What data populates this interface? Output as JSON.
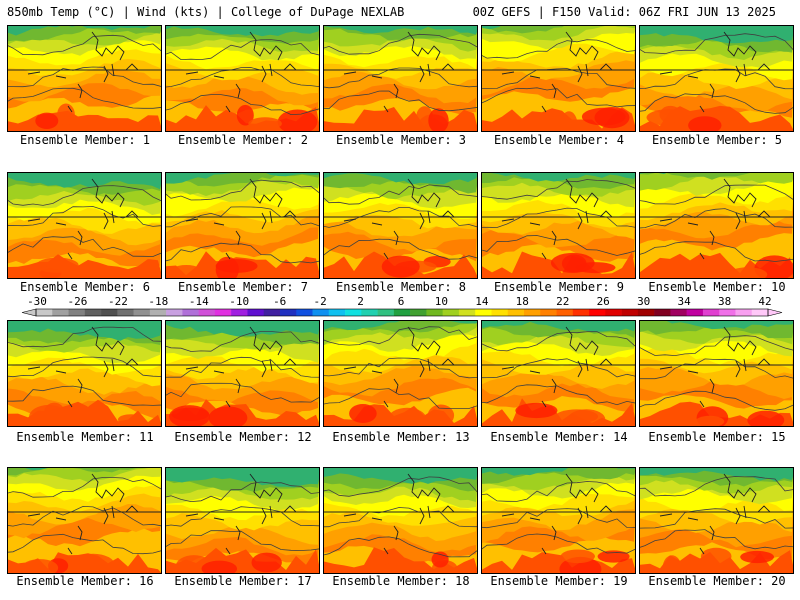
{
  "header": {
    "left_title": "850mb Temp (°C) | Wind (kts) | College of DuPage NEXLAB",
    "right_title": "00Z GEFS | F150 Valid: 06Z FRI JUN 13 2025"
  },
  "panels": [
    {
      "label": "Ensemble Member: 1"
    },
    {
      "label": "Ensemble Member: 2"
    },
    {
      "label": "Ensemble Member: 3"
    },
    {
      "label": "Ensemble Member: 4"
    },
    {
      "label": "Ensemble Member: 5"
    },
    {
      "label": "Ensemble Member: 6"
    },
    {
      "label": "Ensemble Member: 7"
    },
    {
      "label": "Ensemble Member: 8"
    },
    {
      "label": "Ensemble Member: 9"
    },
    {
      "label": "Ensemble Member: 10"
    },
    {
      "label": "Ensemble Member: 11"
    },
    {
      "label": "Ensemble Member: 12"
    },
    {
      "label": "Ensemble Member: 13"
    },
    {
      "label": "Ensemble Member: 14"
    },
    {
      "label": "Ensemble Member: 15"
    },
    {
      "label": "Ensemble Member: 16"
    },
    {
      "label": "Ensemble Member: 17"
    },
    {
      "label": "Ensemble Member: 18"
    },
    {
      "label": "Ensemble Member: 19"
    },
    {
      "label": "Ensemble Member: 20"
    }
  ],
  "colorbar": {
    "ticks": [
      "-30",
      "-26",
      "-22",
      "-18",
      "-14",
      "-10",
      "-6",
      "-2",
      "2",
      "6",
      "10",
      "14",
      "18",
      "22",
      "26",
      "30",
      "34",
      "38",
      "42"
    ],
    "colors": [
      "#c8c8c8",
      "#a0a0a0",
      "#808080",
      "#606060",
      "#505050",
      "#707070",
      "#909090",
      "#b0b0b0",
      "#c8a0e0",
      "#b070d8",
      "#d050d8",
      "#e030e0",
      "#a020e0",
      "#6010d0",
      "#4020a0",
      "#2030c0",
      "#1050e0",
      "#1090f0",
      "#10c0f0",
      "#10e0e0",
      "#20d0b0",
      "#30c080",
      "#20a040",
      "#40a030",
      "#70b820",
      "#a0d020",
      "#d0e020",
      "#ffff00",
      "#ffe000",
      "#ffc000",
      "#ffa000",
      "#ff8000",
      "#ff6000",
      "#ff3000",
      "#ff0000",
      "#e00000",
      "#c00000",
      "#a00000",
      "#800020",
      "#a00060",
      "#c000a0",
      "#e040d0",
      "#f070e8",
      "#f8a0f0",
      "#ffc8f8"
    ]
  }
}
